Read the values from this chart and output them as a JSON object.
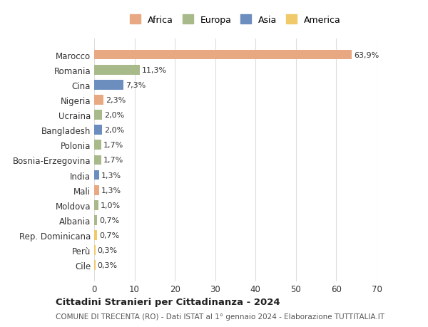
{
  "categories": [
    "Marocco",
    "Romania",
    "Cina",
    "Nigeria",
    "Ucraina",
    "Bangladesh",
    "Polonia",
    "Bosnia-Erzegovina",
    "India",
    "Mali",
    "Moldova",
    "Albania",
    "Rep. Dominicana",
    "Perù",
    "Cile"
  ],
  "values": [
    63.9,
    11.3,
    7.3,
    2.3,
    2.0,
    2.0,
    1.7,
    1.7,
    1.3,
    1.3,
    1.0,
    0.7,
    0.7,
    0.3,
    0.3
  ],
  "labels": [
    "63,9%",
    "11,3%",
    "7,3%",
    "2,3%",
    "2,0%",
    "2,0%",
    "1,7%",
    "1,7%",
    "1,3%",
    "1,3%",
    "1,0%",
    "0,7%",
    "0,7%",
    "0,3%",
    "0,3%"
  ],
  "colors": [
    "#E8A882",
    "#A8BA8A",
    "#6B8EBF",
    "#E8A882",
    "#A8BA8A",
    "#6B8EBF",
    "#A8BA8A",
    "#A8BA8A",
    "#6B8EBF",
    "#E8A882",
    "#A8BA8A",
    "#A8BA8A",
    "#F0C96A",
    "#F0C96A",
    "#F0C96A"
  ],
  "legend_labels": [
    "Africa",
    "Europa",
    "Asia",
    "America"
  ],
  "legend_colors": [
    "#E8A882",
    "#A8BA8A",
    "#6B8EBF",
    "#F0C96A"
  ],
  "title": "Cittadini Stranieri per Cittadinanza - 2024",
  "subtitle": "COMUNE DI TRECENTA (RO) - Dati ISTAT al 1° gennaio 2024 - Elaborazione TUTTITALIA.IT",
  "xlim": [
    0,
    70
  ],
  "xticks": [
    0,
    10,
    20,
    30,
    40,
    50,
    60,
    70
  ],
  "background_color": "#ffffff",
  "grid_color": "#dddddd",
  "bar_height": 0.65
}
